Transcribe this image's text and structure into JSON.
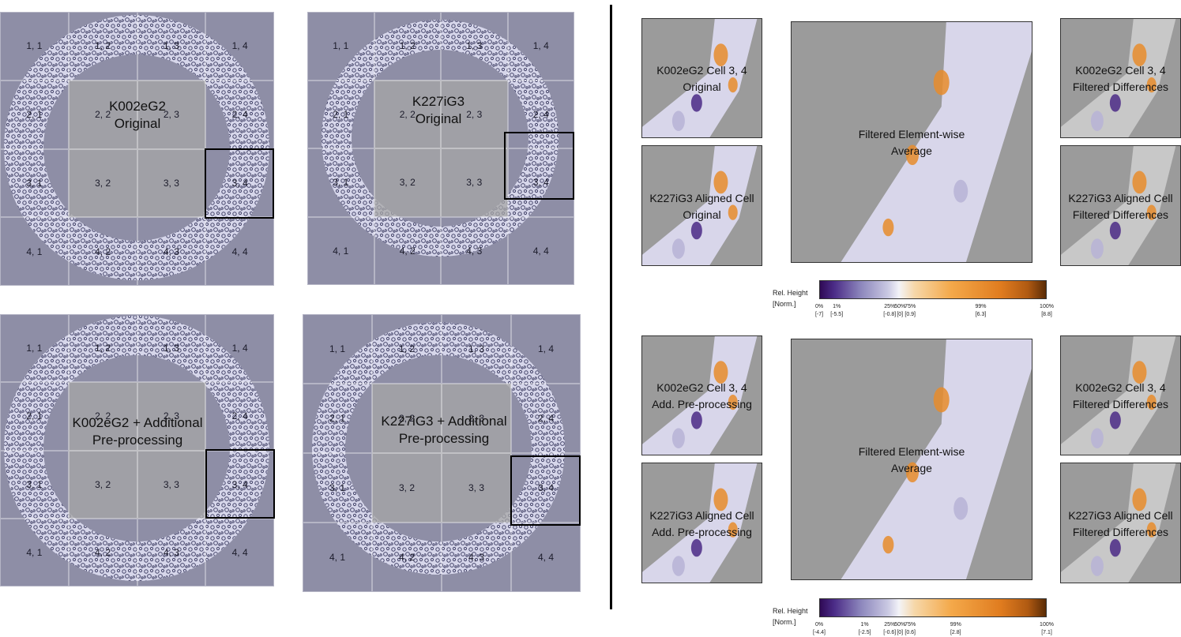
{
  "scans": [
    {
      "title_lines": [
        "K002eG2",
        "Original"
      ],
      "cells": [
        "1, 1",
        "1, 2",
        "1, 3",
        "1, 4",
        "2, 1",
        "2, 2",
        "2, 3",
        "2, 4",
        "3, 1",
        "3, 2",
        "3, 3",
        "3, 4",
        "4, 1",
        "4, 2",
        "4, 3",
        "4, 4"
      ]
    },
    {
      "title_lines": [
        "K227iG3",
        "Original"
      ],
      "cells": [
        "1, 1",
        "1, 2",
        "1, 3",
        "1, 4",
        "2, 1",
        "2, 2",
        "2, 3",
        "2, 4",
        "3, 1",
        "3, 2",
        "3, 3",
        "3, 4",
        "4, 1",
        "4, 2",
        "4, 3",
        "4, 4"
      ]
    },
    {
      "title_lines": [
        "K002eG2 + Additional",
        "Pre-processing"
      ],
      "cells": [
        "1, 1",
        "1, 2",
        "1, 3",
        "1, 4",
        "2, 1",
        "2, 2",
        "2, 3",
        "2, 4",
        "3, 1",
        "3, 2",
        "3, 3",
        "3, 4",
        "4, 1",
        "4, 2",
        "4, 3",
        "4, 4"
      ]
    },
    {
      "title_lines": [
        "K227iG3 + Additional",
        "Pre-processing"
      ],
      "cells": [
        "1, 1",
        "1, 2",
        "1, 3",
        "1, 4",
        "2, 1",
        "2, 2",
        "2, 3",
        "2, 4",
        "3, 1",
        "3, 2",
        "3, 3",
        "3, 4",
        "4, 1",
        "4, 2",
        "4, 3",
        "4, 4"
      ]
    }
  ],
  "comparison_rows": [
    {
      "reference": [
        "K002eG2 Cell 3, 4",
        "Original"
      ],
      "aligned": [
        "K227iG3 Aligned Cell",
        "Original"
      ],
      "average": [
        "Filtered Element-wise",
        "Average"
      ],
      "ref_diff": [
        "K002eG2 Cell 3, 4",
        "Filtered Differences"
      ],
      "aligned_diff": [
        "K227iG3 Aligned Cell",
        "Filtered Differences"
      ],
      "colorbar": {
        "title": [
          "Rel. Height",
          "[Norm.]"
        ],
        "percent_ticks": [
          "0%",
          "1%",
          "25%",
          "50%",
          "75%",
          "99%",
          "100%"
        ],
        "percent_positions": [
          0.0,
          0.077,
          0.31,
          0.355,
          0.4,
          0.71,
          1.0
        ],
        "value_ticks": [
          "[-7]",
          "[-5.5]",
          "[-0.8]",
          "[0]",
          "[0.9]",
          "[6.3]",
          "[8.8]"
        ],
        "value_positions": [
          0.0,
          0.077,
          0.31,
          0.355,
          0.4,
          0.71,
          1.0
        ]
      }
    },
    {
      "reference": [
        "K002eG2 Cell 3, 4",
        "Add. Pre-processing"
      ],
      "aligned": [
        "K227iG3 Aligned Cell",
        "Add. Pre-processing"
      ],
      "average": [
        "Filtered Element-wise",
        "Average"
      ],
      "ref_diff": [
        "K002eG2 Cell 3, 4",
        "Filtered Differences"
      ],
      "aligned_diff": [
        "K227iG3 Aligned Cell",
        "Filtered Differences"
      ],
      "colorbar": {
        "title": [
          "Rel. Height",
          "[Norm.]"
        ],
        "percent_ticks": [
          "0%",
          "1%",
          "25%",
          "50%",
          "75%",
          "99%",
          "100%"
        ],
        "percent_positions": [
          0.0,
          0.2,
          0.31,
          0.355,
          0.4,
          0.6,
          1.0
        ],
        "value_ticks": [
          "[-4.4]",
          "[-2.5]",
          "[-0.6]",
          "[0]",
          "[0.6]",
          "[2.8]",
          "[7.1]"
        ],
        "value_positions": [
          0.0,
          0.2,
          0.31,
          0.355,
          0.4,
          0.6,
          1.0
        ]
      }
    }
  ],
  "colors": {
    "cell_fill": "#8e8ea6",
    "scan_light": "#dcdcf0",
    "scan_dark": "#3e3e64",
    "filtered_gray": "#c8c8c8",
    "background_gray": "#9b9b9b",
    "orange": "#e88c2c",
    "purple": "#4b2a86"
  }
}
